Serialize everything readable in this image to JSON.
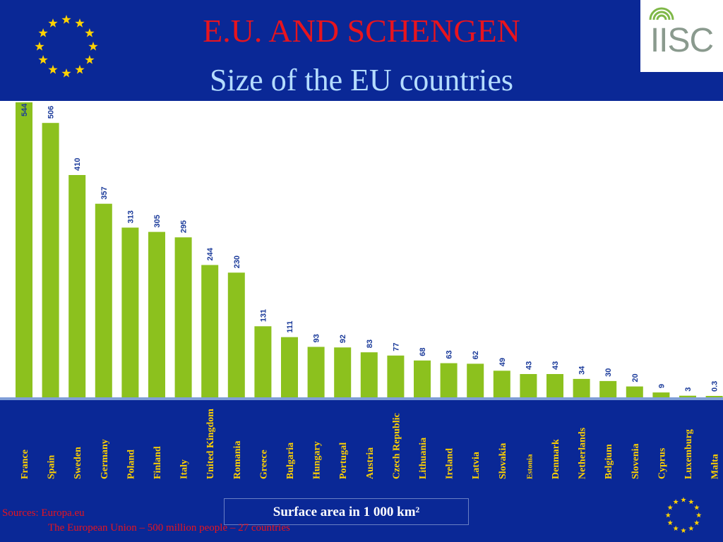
{
  "header": {
    "title": "E.U. AND SCHENGEN",
    "subtitle": "Size of the EU countries",
    "logo_text": "IISC"
  },
  "footer": {
    "sources_line1": "Sources: Europa.eu",
    "sources_line2": "The European Union – 500 million people – 27 countries"
  },
  "colors": {
    "background": "#0a2896",
    "bar": "#8cc11e",
    "title": "#e8141e",
    "subtitle": "#b4dcff",
    "value_label": "#1a3a9a",
    "star": "#ffd200"
  },
  "icons": {
    "flag": "eu-flag-icon",
    "logo": "iisc-logo-icon"
  },
  "chart_data": {
    "type": "bar",
    "title": "E.U. AND SCHENGEN",
    "subtitle": "Size of the EU countries",
    "xlabel": "Surface area in 1 000 km²",
    "ylabel": "",
    "categories": [
      "France",
      "Spain",
      "Sweden",
      "Germany",
      "Poland",
      "Finland",
      "Italy",
      "United Kingdom",
      "Romania",
      "Greece",
      "Bulgaria",
      "Hungary",
      "Portugal",
      "Austria",
      "Czech Republic",
      "Lithuania",
      "Ireland",
      "Latvia",
      "Slovakia",
      "Estonia",
      "Denmark",
      "Netherlands",
      "Belgium",
      "Slovenia",
      "Cyprus",
      "Luxemburg",
      "Malta"
    ],
    "values": [
      544,
      506,
      410,
      357,
      313,
      305,
      295,
      244,
      230,
      131,
      111,
      93,
      92,
      83,
      77,
      68,
      63,
      62,
      49,
      43,
      43,
      34,
      30,
      20,
      9,
      3,
      0.3
    ],
    "value_labels": [
      "544",
      "506",
      "410",
      "357",
      "313",
      "305",
      "295",
      "244",
      "230",
      "131",
      "111",
      "93",
      "92",
      "83",
      "77",
      "68",
      "63",
      "62",
      "49",
      "43",
      "43",
      "34",
      "30",
      "20",
      "9",
      "3",
      "0.3"
    ],
    "ylim": [
      0,
      544
    ],
    "grid": false,
    "legend": "none"
  }
}
